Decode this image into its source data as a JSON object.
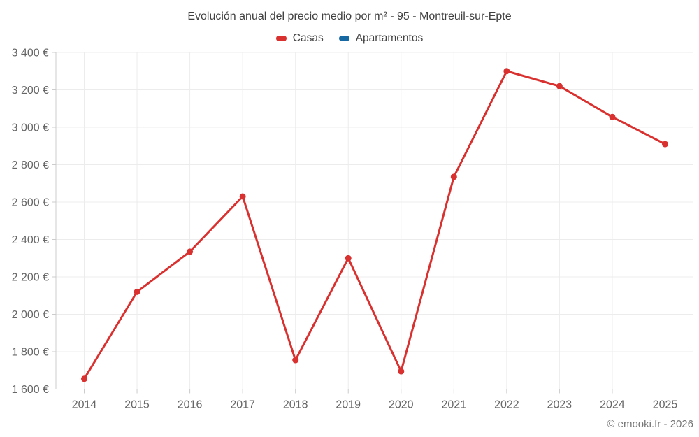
{
  "header": {
    "title": "Evolución anual del precio medio por m² - 95 - Montreuil-sur-Epte",
    "legend": [
      {
        "label": "Casas",
        "color": "#d8312f"
      },
      {
        "label": "Apartamentos",
        "color": "#1769a4"
      }
    ]
  },
  "footer": {
    "credit": "© emooki.fr - 2026"
  },
  "chart_data": {
    "type": "line",
    "title": "Evolución anual del precio medio por m² - 95 - Montreuil-sur-Epte",
    "categories": [
      "2014",
      "2015",
      "2016",
      "2017",
      "2018",
      "2019",
      "2020",
      "2021",
      "2022",
      "2023",
      "2024",
      "2025"
    ],
    "series": [
      {
        "name": "Casas",
        "color": "#d8312f",
        "values": [
          1655,
          2120,
          2335,
          2630,
          1755,
          2300,
          1695,
          2735,
          3300,
          3220,
          3055,
          2910
        ]
      },
      {
        "name": "Apartamentos",
        "color": "#1769a4",
        "values": []
      }
    ],
    "xlabel": "",
    "ylabel": "",
    "ylim": [
      1600,
      3400
    ],
    "ytick_step": 200,
    "ytick_suffix": " €",
    "grid": true,
    "legend_position": "top",
    "grid_color": "#ececec",
    "axis_color": "#cccccc",
    "tick_label_color": "#666666"
  }
}
